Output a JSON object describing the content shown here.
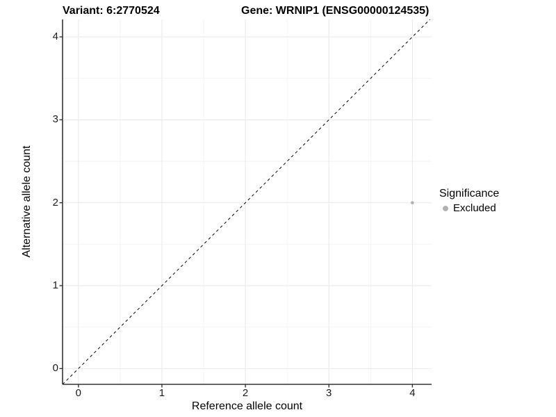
{
  "chart_data": {
    "type": "scatter",
    "titles": {
      "left": "Variant: 6:2770524",
      "right": "Gene: WRNIP1 (ENSG00000124535)"
    },
    "xlabel": "Reference allele count",
    "ylabel": "Alternative allele count",
    "x_ticks": [
      0,
      1,
      2,
      3,
      4
    ],
    "y_ticks": [
      0,
      1,
      2,
      3,
      4
    ],
    "xlim": [
      -0.19,
      4.23
    ],
    "ylim": [
      -0.19,
      4.21
    ],
    "grid": {
      "major": true,
      "minor": true
    },
    "series": [
      {
        "name": "Excluded",
        "color": "#b2b2b2",
        "points": [
          {
            "x": 4,
            "y": 2
          }
        ]
      }
    ],
    "reference_line": {
      "type": "identity",
      "slope": 1,
      "intercept": 0,
      "style": "dashed",
      "color": "#000000"
    },
    "legend": {
      "title": "Significance",
      "position": "right",
      "entries": [
        {
          "label": "Excluded",
          "color": "#b2b2b2"
        }
      ]
    },
    "colors": {
      "background": "#ffffff",
      "grid_major": "#ebebeb",
      "grid_minor": "#f2f2f2",
      "axis_line": "#333333",
      "tick_label": "#1a1a1a"
    }
  }
}
